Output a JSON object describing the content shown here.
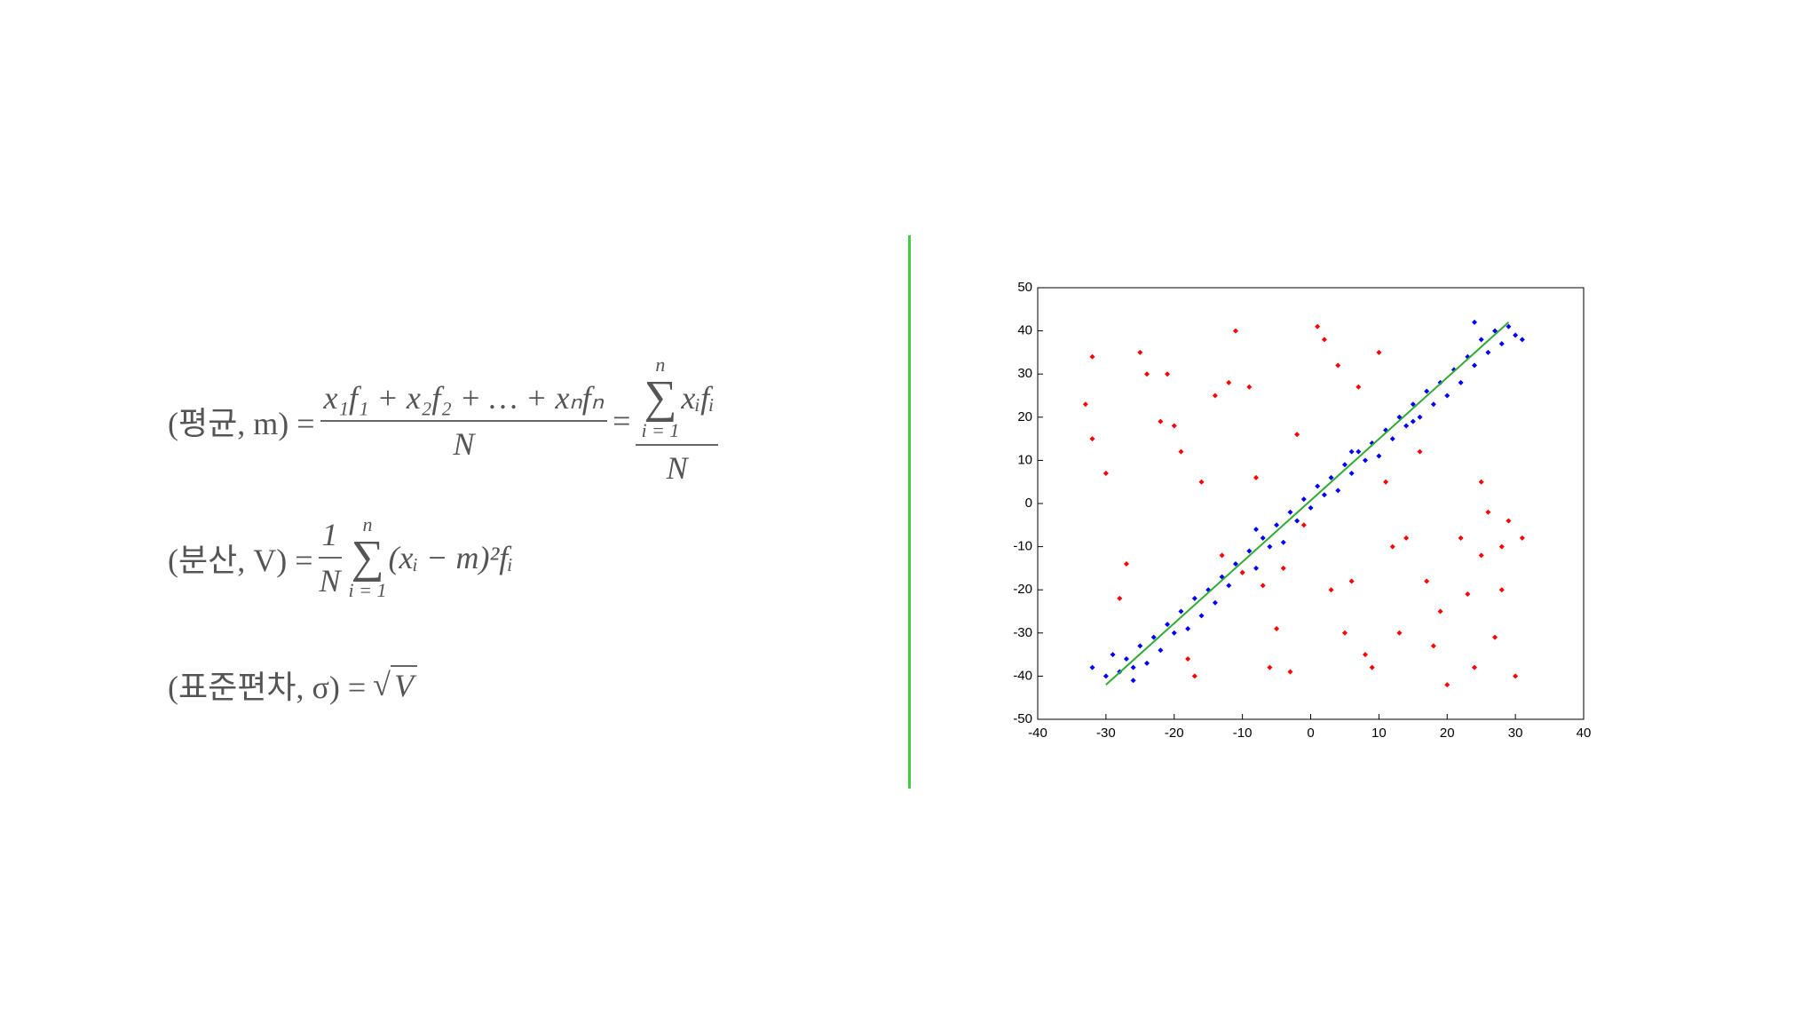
{
  "formulas": [
    {
      "lhs": "(평균, m) =",
      "fraction": {
        "numerator": "x₁f₁ + x₂f₂ + … + xₙfₙ",
        "denominator": "N"
      },
      "equals": "=",
      "sum_fraction": {
        "upper": "n",
        "symbol": "∑",
        "lower": "i = 1",
        "term": "xᵢfᵢ",
        "denominator": "N"
      }
    },
    {
      "lhs": "(분산, V) =",
      "fraction": {
        "numerator": "1",
        "denominator": "N"
      },
      "sum": {
        "upper": "n",
        "symbol": "∑",
        "lower": "i = 1",
        "term": "(xᵢ − m)²fᵢ"
      }
    },
    {
      "lhs": "(표준편차, σ) =",
      "root": "√",
      "radicand": "V"
    }
  ],
  "chart_data": {
    "type": "scatter",
    "xlim": [
      -40,
      40
    ],
    "xticks": [
      -40,
      -30,
      -20,
      -10,
      0,
      10,
      20,
      30,
      40
    ],
    "ylim": [
      -50,
      50
    ],
    "yticks": [
      -50,
      -40,
      -30,
      -20,
      -10,
      0,
      10,
      20,
      30,
      40,
      50
    ],
    "series": [
      {
        "color": "#0000ff",
        "x": [
          -32,
          -30,
          -29,
          -28,
          -27,
          -26,
          -25,
          -24,
          -23,
          -22,
          -21,
          -20,
          -19,
          -18,
          -17,
          -16,
          -15,
          -14,
          -13,
          -12,
          -11,
          -10,
          -9,
          -8,
          -7,
          -6,
          -5,
          -4,
          -3,
          -2,
          -1,
          0,
          1,
          2,
          3,
          4,
          5,
          6,
          7,
          8,
          9,
          10,
          11,
          12,
          13,
          14,
          15,
          16,
          17,
          18,
          19,
          20,
          21,
          22,
          23,
          24,
          25,
          26,
          27,
          28,
          29,
          30,
          31,
          24,
          -26,
          6,
          -8,
          15
        ],
        "values": [
          -38,
          -40,
          -35,
          -39,
          -36,
          -41,
          -33,
          -37,
          -31,
          -34,
          -28,
          -30,
          -25,
          -29,
          -22,
          -26,
          -20,
          -23,
          -17,
          -19,
          -14,
          -16,
          -11,
          -15,
          -8,
          -10,
          -5,
          -9,
          -2,
          -4,
          1,
          -1,
          4,
          2,
          6,
          3,
          9,
          7,
          12,
          10,
          14,
          11,
          17,
          15,
          20,
          18,
          23,
          20,
          26,
          23,
          28,
          25,
          31,
          28,
          34,
          32,
          38,
          35,
          40,
          37,
          41,
          39,
          38,
          42,
          -38,
          12,
          -6,
          19
        ]
      },
      {
        "color": "#ff0000",
        "x": [
          -32,
          -33,
          -32,
          -30,
          -28,
          -27,
          -25,
          -24,
          -22,
          -21,
          -20,
          -19,
          -18,
          -17,
          -16,
          -14,
          -13,
          -12,
          -11,
          -10,
          -9,
          -8,
          -7,
          -6,
          -5,
          -4,
          -3,
          -2,
          -1,
          1,
          2,
          3,
          4,
          5,
          6,
          7,
          8,
          9,
          10,
          11,
          12,
          13,
          14,
          16,
          17,
          18,
          19,
          20,
          22,
          23,
          24,
          25,
          26,
          27,
          28,
          29,
          30,
          31,
          28,
          25
        ],
        "values": [
          34,
          23,
          15,
          7,
          -22,
          -14,
          35,
          30,
          19,
          30,
          18,
          12,
          -36,
          -40,
          5,
          25,
          -12,
          28,
          40,
          -16,
          27,
          6,
          -19,
          -38,
          -29,
          -15,
          -39,
          16,
          -5,
          41,
          38,
          -20,
          32,
          -30,
          -18,
          27,
          -35,
          -38,
          35,
          5,
          -10,
          -30,
          -8,
          12,
          -18,
          -33,
          -25,
          -42,
          -8,
          -21,
          -38,
          5,
          -2,
          -31,
          -10,
          -4,
          -40,
          -8,
          -20,
          -12
        ]
      },
      {
        "type": "line",
        "color": "#33aa33",
        "x": [
          -30,
          29
        ],
        "values": [
          -42,
          42
        ]
      }
    ]
  }
}
